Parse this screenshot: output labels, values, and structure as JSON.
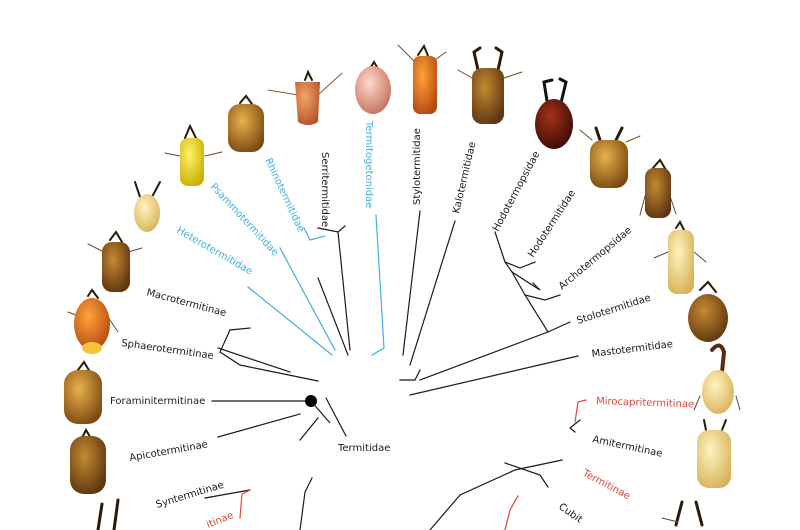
{
  "diagram": {
    "root_label": "Termitidae",
    "colors": {
      "black": "#1a1a1a",
      "blue": "#3fb0df",
      "red": "#e0453d"
    },
    "taxa": [
      {
        "id": "serritermitidae",
        "label": "Serritermitidae",
        "color": "black"
      },
      {
        "id": "rhinotermitidae",
        "label": "Rhinotermitidae",
        "color": "blue"
      },
      {
        "id": "psammotermitidae",
        "label": "Psammotermitidae",
        "color": "blue"
      },
      {
        "id": "heterotermitidae",
        "label": "Heterotermitidae",
        "color": "blue"
      },
      {
        "id": "termitogetonidae",
        "label": "Termitogetonidae",
        "color": "blue"
      },
      {
        "id": "stylotermitidae",
        "label": "Stylotermitidae",
        "color": "black"
      },
      {
        "id": "kalotermitidae",
        "label": "Kalotermitidae",
        "color": "black"
      },
      {
        "id": "hodotermopsidae",
        "label": "Hodotermopsidae",
        "color": "black"
      },
      {
        "id": "hodotermitidae",
        "label": "Hodotermitidae",
        "color": "black"
      },
      {
        "id": "archotermopsidae",
        "label": "Archotermopsidae",
        "color": "black"
      },
      {
        "id": "stolotermitidae",
        "label": "Stolotermitidae",
        "color": "black"
      },
      {
        "id": "mastotermitidae",
        "label": "Mastotermitidae",
        "color": "black"
      },
      {
        "id": "macrotermitinae",
        "label": "Macrotermitinae",
        "color": "black"
      },
      {
        "id": "sphaerotermitinae",
        "label": "Sphaerotermitinae",
        "color": "black"
      },
      {
        "id": "foraminitermitinae",
        "label": "Foraminitermitinae",
        "color": "black"
      },
      {
        "id": "apicotermitinae",
        "label": "Apicotermitinae",
        "color": "black"
      },
      {
        "id": "syntermitinae",
        "label": "Syntermitinae",
        "color": "black"
      },
      {
        "id": "partial-inae",
        "label": "itinae",
        "color": "red"
      },
      {
        "id": "mirocapritermitinae",
        "label": "Mirocapritermitinae",
        "color": "red"
      },
      {
        "id": "amitermitinae",
        "label": "Amitermitinae",
        "color": "black"
      },
      {
        "id": "termitinae",
        "label": "Termitinae",
        "color": "red"
      },
      {
        "id": "cubitermitinae-partial",
        "label": "Cubit",
        "color": "black"
      }
    ]
  }
}
